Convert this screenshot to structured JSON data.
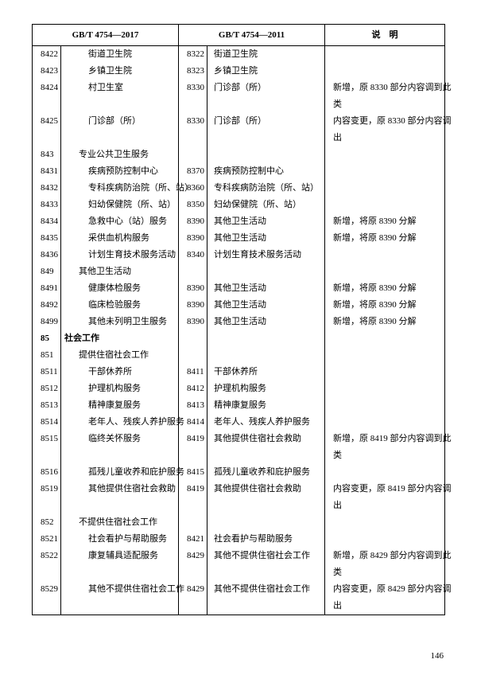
{
  "headers": {
    "col1": "GB/T 4754—2017",
    "col2": "GB/T 4754—2011",
    "col3": "说　明"
  },
  "page_number": "146",
  "rows": [
    {
      "c1": "8422",
      "n1": "街道卫生院",
      "i1": 2,
      "c2": "8322",
      "n2": "街道卫生院",
      "note": ""
    },
    {
      "c1": "8423",
      "n1": "乡镇卫生院",
      "i1": 2,
      "c2": "8323",
      "n2": "乡镇卫生院",
      "note": ""
    },
    {
      "c1": "8424",
      "n1": "村卫生室",
      "i1": 2,
      "c2": "8330",
      "n2": "门诊部（所）",
      "note": "新增，原 8330 部分内容调到此"
    },
    {
      "c1": "",
      "n1": "",
      "i1": 0,
      "c2": "",
      "n2": "",
      "note": "类"
    },
    {
      "c1": "8425",
      "n1": "门诊部（所）",
      "i1": 2,
      "c2": "8330",
      "n2": "门诊部（所）",
      "note": "内容变更，原 8330 部分内容调"
    },
    {
      "c1": "",
      "n1": "",
      "i1": 0,
      "c2": "",
      "n2": "",
      "note": "出"
    },
    {
      "c1": "843",
      "n1": "专业公共卫生服务",
      "i1": 1,
      "c2": "",
      "n2": "",
      "note": ""
    },
    {
      "c1": "8431",
      "n1": "疾病预防控制中心",
      "i1": 2,
      "c2": "8370",
      "n2": "疾病预防控制中心",
      "note": ""
    },
    {
      "c1": "8432",
      "n1": "专科疾病防治院（所、站）",
      "i1": 2,
      "c2": "8360",
      "n2": "专科疾病防治院（所、站）",
      "note": ""
    },
    {
      "c1": "8433",
      "n1": "妇幼保健院（所、站）",
      "i1": 2,
      "c2": "8350",
      "n2": "妇幼保健院（所、站）",
      "note": ""
    },
    {
      "c1": "8434",
      "n1": "急救中心（站）服务",
      "i1": 2,
      "c2": "8390",
      "n2": "其他卫生活动",
      "note": "新增，将原 8390 分解"
    },
    {
      "c1": "8435",
      "n1": "采供血机构服务",
      "i1": 2,
      "c2": "8390",
      "n2": "其他卫生活动",
      "note": "新增，将原 8390 分解"
    },
    {
      "c1": "8436",
      "n1": "计划生育技术服务活动",
      "i1": 2,
      "c2": "8340",
      "n2": "计划生育技术服务活动",
      "note": ""
    },
    {
      "c1": "849",
      "n1": "其他卫生活动",
      "i1": 1,
      "c2": "",
      "n2": "",
      "note": ""
    },
    {
      "c1": "8491",
      "n1": "健康体检服务",
      "i1": 2,
      "c2": "8390",
      "n2": "其他卫生活动",
      "note": "新增，将原 8390 分解"
    },
    {
      "c1": "8492",
      "n1": "临床检验服务",
      "i1": 2,
      "c2": "8390",
      "n2": "其他卫生活动",
      "note": "新增，将原 8390 分解"
    },
    {
      "c1": "8499",
      "n1": "其他未列明卫生服务",
      "i1": 2,
      "c2": "8390",
      "n2": "其他卫生活动",
      "note": "新增，将原 8390 分解"
    },
    {
      "c1": "85",
      "n1": "社会工作",
      "i1": 0,
      "bold": true,
      "c2": "",
      "n2": "",
      "note": ""
    },
    {
      "c1": "851",
      "n1": "提供住宿社会工作",
      "i1": 1,
      "c2": "",
      "n2": "",
      "note": ""
    },
    {
      "c1": "8511",
      "n1": "干部休养所",
      "i1": 2,
      "c2": "8411",
      "n2": "干部休养所",
      "note": ""
    },
    {
      "c1": "8512",
      "n1": "护理机构服务",
      "i1": 2,
      "c2": "8412",
      "n2": "护理机构服务",
      "note": ""
    },
    {
      "c1": "8513",
      "n1": "精神康复服务",
      "i1": 2,
      "c2": "8413",
      "n2": "精神康复服务",
      "note": ""
    },
    {
      "c1": "8514",
      "n1": "老年人、残疾人养护服务",
      "i1": 2,
      "c2": "8414",
      "n2": "老年人、残疾人养护服务",
      "note": ""
    },
    {
      "c1": "8515",
      "n1": "临终关怀服务",
      "i1": 2,
      "c2": "8419",
      "n2": "其他提供住宿社会救助",
      "note": "新增，原 8419 部分内容调到此"
    },
    {
      "c1": "",
      "n1": "",
      "i1": 0,
      "c2": "",
      "n2": "",
      "note": "类"
    },
    {
      "c1": "8516",
      "n1": "孤残儿童收养和庇护服务",
      "i1": 2,
      "c2": "8415",
      "n2": "孤残儿童收养和庇护服务",
      "note": ""
    },
    {
      "c1": "8519",
      "n1": "其他提供住宿社会救助",
      "i1": 2,
      "c2": "8419",
      "n2": "其他提供住宿社会救助",
      "note": "内容变更，原 8419 部分内容调"
    },
    {
      "c1": "",
      "n1": "",
      "i1": 0,
      "c2": "",
      "n2": "",
      "note": "出"
    },
    {
      "c1": "852",
      "n1": "不提供住宿社会工作",
      "i1": 1,
      "c2": "",
      "n2": "",
      "note": ""
    },
    {
      "c1": "8521",
      "n1": "社会看护与帮助服务",
      "i1": 2,
      "c2": "8421",
      "n2": "社会看护与帮助服务",
      "note": ""
    },
    {
      "c1": "8522",
      "n1": "康复辅具适配服务",
      "i1": 2,
      "c2": "8429",
      "n2": "其他不提供住宿社会工作",
      "note": "新增，原 8429 部分内容调到此"
    },
    {
      "c1": "",
      "n1": "",
      "i1": 0,
      "c2": "",
      "n2": "",
      "note": "类"
    },
    {
      "c1": "8529",
      "n1": "其他不提供住宿社会工作",
      "i1": 2,
      "c2": "8429",
      "n2": "其他不提供住宿社会工作",
      "note": "内容变更，原 8429 部分内容调"
    },
    {
      "c1": "",
      "n1": "",
      "i1": 0,
      "c2": "",
      "n2": "",
      "note": "出"
    }
  ]
}
